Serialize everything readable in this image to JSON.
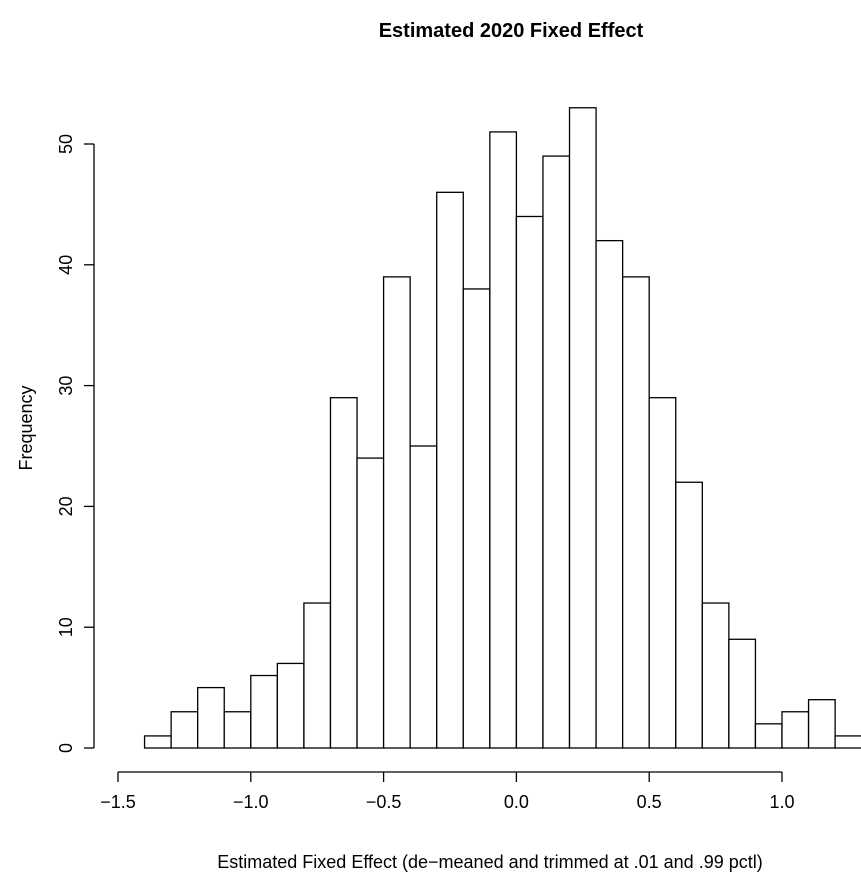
{
  "chart_data": {
    "type": "bar",
    "subtype": "histogram",
    "title": "Estimated 2020 Fixed Effect",
    "xlabel": "Estimated Fixed Effect (de−meaned and trimmed at .01 and .99 pctl)",
    "ylabel": "Frequency",
    "bin_width": 0.1,
    "bin_starts": [
      -1.4,
      -1.3,
      -1.2,
      -1.1,
      -1.0,
      -0.9,
      -0.8,
      -0.7,
      -0.6,
      -0.5,
      -0.4,
      -0.3,
      -0.2,
      -0.1,
      0.0,
      0.1,
      0.2,
      0.3,
      0.4,
      0.5,
      0.6,
      0.7,
      0.8,
      0.9,
      1.0,
      1.1,
      1.2
    ],
    "values": [
      1,
      3,
      5,
      3,
      6,
      7,
      12,
      29,
      24,
      39,
      25,
      46,
      38,
      51,
      44,
      49,
      53,
      42,
      39,
      29,
      22,
      12,
      9,
      2,
      3,
      4,
      1
    ],
    "xlim": [
      -1.5,
      1.0
    ],
    "ylim": [
      0,
      50
    ],
    "x_ticks": [
      -1.5,
      -1.0,
      -0.5,
      0.0,
      0.5,
      1.0
    ],
    "x_tick_labels": [
      "−1.5",
      "−1.0",
      "−0.5",
      "0.0",
      "0.5",
      "1.0"
    ],
    "y_ticks": [
      0,
      10,
      20,
      30,
      40,
      50
    ],
    "y_tick_labels": [
      "0",
      "10",
      "20",
      "30",
      "40",
      "50"
    ],
    "colors": {
      "bar_fill": "#ffffff",
      "bar_stroke": "#000000"
    },
    "grid": false,
    "legend": "none"
  }
}
